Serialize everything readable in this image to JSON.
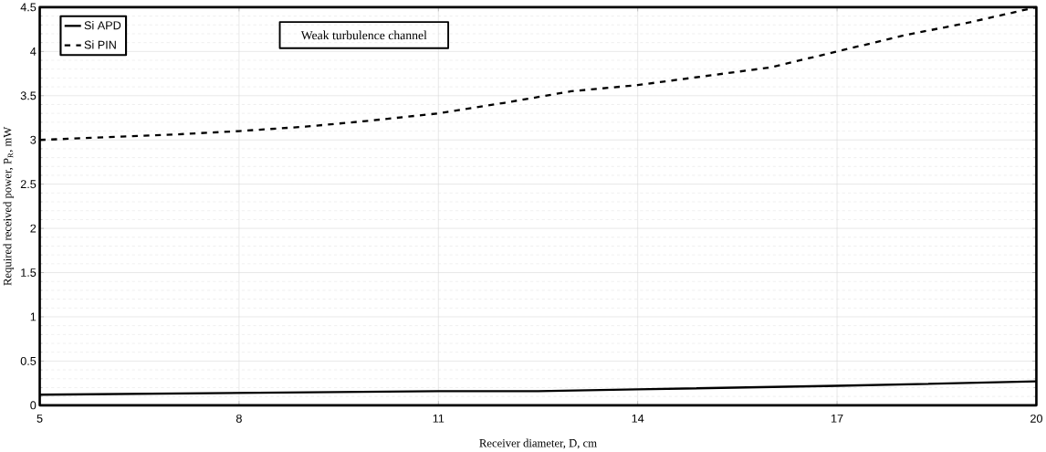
{
  "chart_data": {
    "type": "line",
    "title": "Weak turbulence channel",
    "xlabel": "Receiver diameter, D, cm",
    "ylabel": "Required received power, P$_{R}$, mW",
    "xlim": [
      5,
      20
    ],
    "xticks": [
      5,
      8,
      11,
      14,
      17,
      20
    ],
    "ylim": [
      0,
      4.5
    ],
    "yticks": [
      0,
      0.5,
      1,
      1.5,
      2,
      2.5,
      3,
      3.5,
      4,
      4.5
    ],
    "grid": true,
    "legend": "top left",
    "series": [
      {
        "name": "Si APD",
        "color": "#000000",
        "line_style": "solid",
        "x": [
          5,
          8,
          11,
          12.5,
          14,
          17,
          20
        ],
        "values": [
          0.12,
          0.14,
          0.16,
          0.16,
          0.18,
          0.22,
          0.27
        ]
      },
      {
        "name": "Si PIN",
        "color": "#000000",
        "line_style": "dashed",
        "x": [
          5,
          6,
          7,
          8,
          9,
          10,
          11,
          12,
          13,
          14,
          15,
          16,
          17,
          18,
          19,
          20
        ],
        "values": [
          3.0,
          3.03,
          3.06,
          3.1,
          3.15,
          3.22,
          3.3,
          3.42,
          3.55,
          3.62,
          3.72,
          3.82,
          4.0,
          4.18,
          4.33,
          4.5
        ]
      }
    ]
  }
}
